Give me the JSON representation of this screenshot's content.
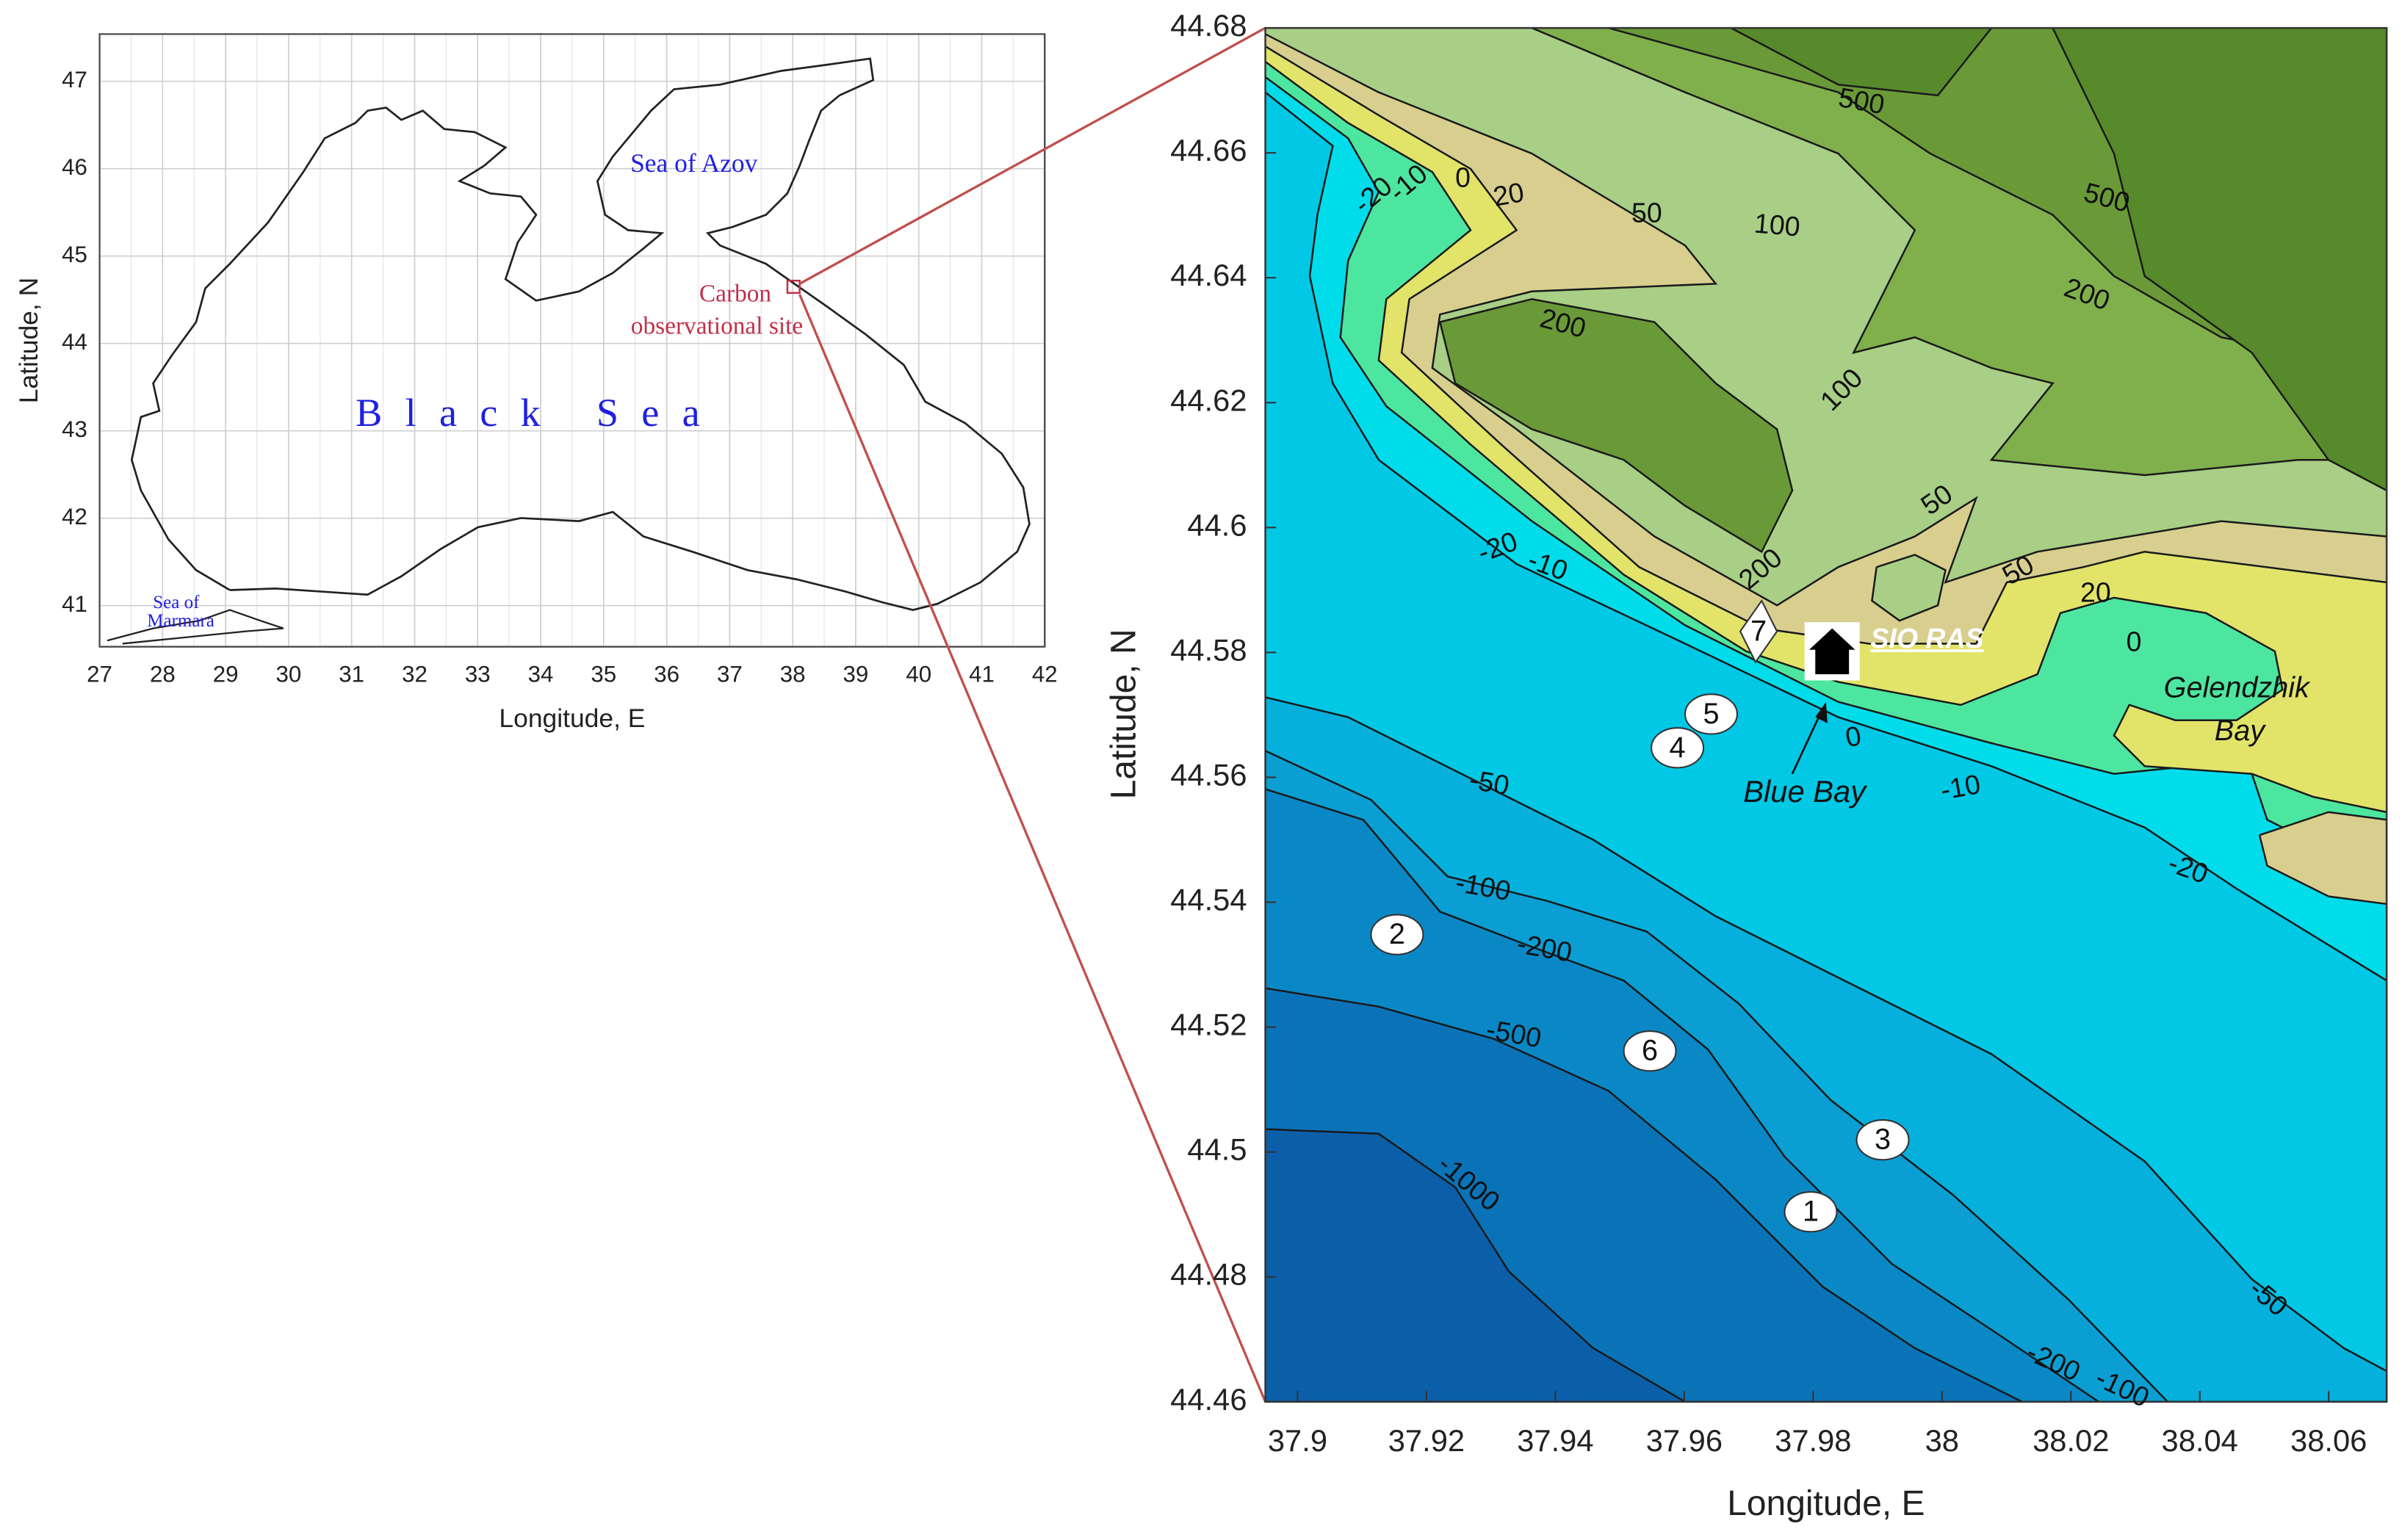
{
  "maps": [
    {
      "xlabel": "Longitude, E",
      "ylabel": "Latitude, N",
      "xlim": [
        27,
        42
      ],
      "ylim": [
        40.53,
        47.54
      ],
      "xticks": [
        27,
        28,
        29,
        30,
        31,
        32,
        33,
        34,
        35,
        36,
        37,
        38,
        39,
        40,
        41,
        42
      ],
      "yticks": [
        41,
        42,
        43,
        44,
        45,
        46,
        47
      ],
      "grid": true,
      "labels": [
        "Sea of Azov",
        "Carbon",
        "observational site",
        "Black Sea",
        "Sea of",
        "Marmara"
      ]
    },
    {
      "xlabel": "Longitude, E",
      "ylabel": "Latitude, N",
      "xlim": [
        37.895,
        38.069
      ],
      "ylim": [
        44.46,
        44.68
      ],
      "xticks": [
        37.9,
        37.92,
        37.94,
        37.96,
        37.98,
        38,
        38.02,
        38.04,
        38.06
      ],
      "yticks": [
        44.46,
        44.48,
        44.5,
        44.52,
        44.54,
        44.56,
        44.58,
        44.6,
        44.62,
        44.64,
        44.66,
        44.68
      ],
      "grid": false,
      "contour_labels": [
        500,
        500,
        100,
        50,
        20,
        0,
        -10,
        -20,
        200,
        100,
        200,
        50,
        50,
        20,
        0,
        200,
        -20,
        -10,
        0,
        -10,
        -20,
        -50,
        -100,
        -200,
        -500,
        -1000,
        -50,
        -200,
        -100
      ],
      "stations": [
        5,
        4,
        2,
        6,
        3,
        1,
        7
      ],
      "labels": [
        "SIO RAS",
        "Gelendzhik",
        "Bay",
        "Blue Bay"
      ]
    }
  ]
}
